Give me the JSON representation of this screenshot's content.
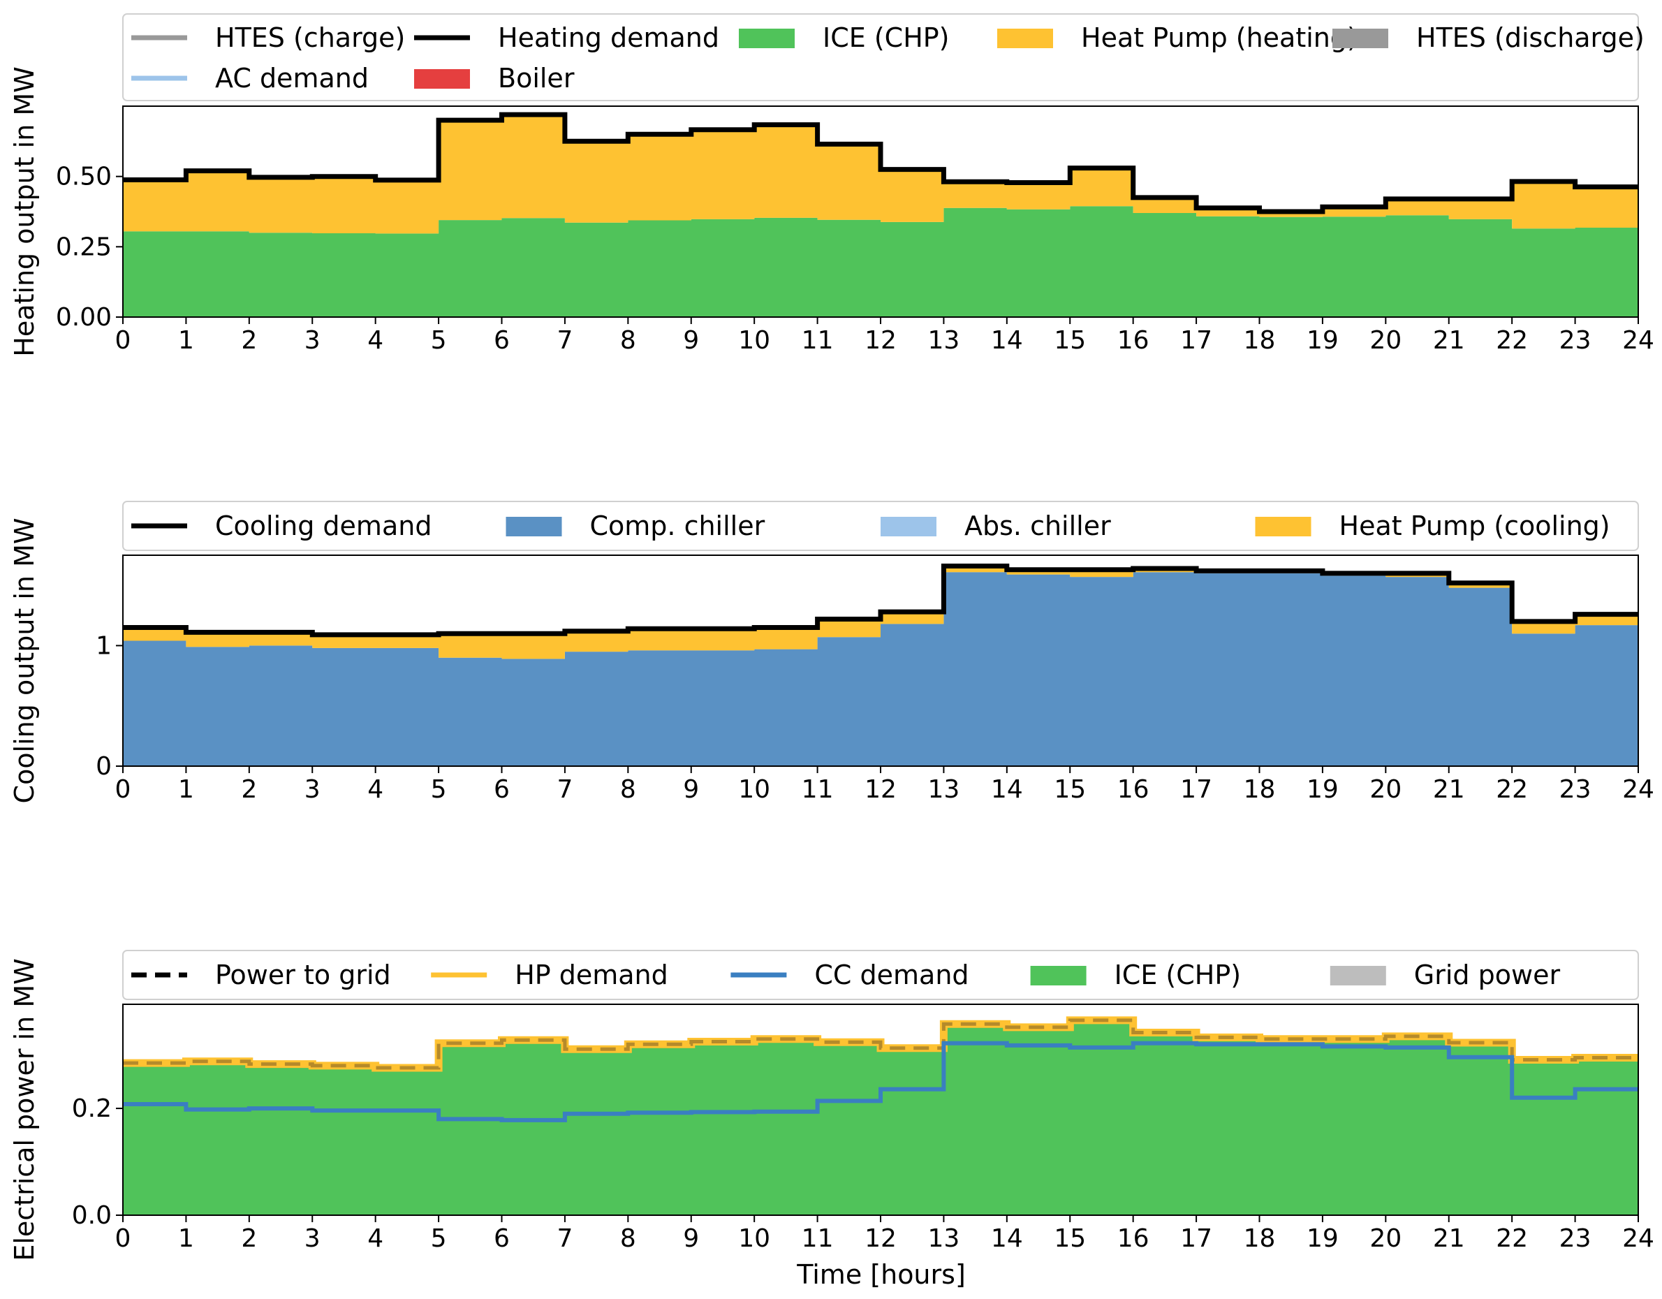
{
  "figure": {
    "xlabel": "Time [hours]"
  },
  "chart_data": [
    {
      "type": "area",
      "ylabel": "Heating output in MW",
      "xlim": [
        0,
        24
      ],
      "ylim": [
        0,
        0.75
      ],
      "x_ticks": [
        0,
        1,
        2,
        3,
        4,
        5,
        6,
        7,
        8,
        9,
        10,
        11,
        12,
        13,
        14,
        15,
        16,
        17,
        18,
        19,
        20,
        21,
        22,
        23,
        24
      ],
      "y_ticks": [
        0.0,
        0.25,
        0.5
      ],
      "y_tick_labels": [
        "0.00",
        "0.25",
        "0.50"
      ],
      "legend": [
        {
          "label": "HTES (charge)",
          "kind": "line",
          "color": "#999999"
        },
        {
          "label": "Heating demand",
          "kind": "line",
          "color": "#000000"
        },
        {
          "label": "ICE (CHP)",
          "kind": "patch",
          "color": "#50c35a"
        },
        {
          "label": "Heat Pump (heating)",
          "kind": "patch",
          "color": "#fec232"
        },
        {
          "label": "HTES (discharge)",
          "kind": "patch",
          "color": "#999999"
        },
        {
          "label": "AC demand",
          "kind": "line",
          "color": "#9dc4ea"
        },
        {
          "label": "Boiler",
          "kind": "patch",
          "color": "#e53f3f"
        }
      ],
      "stacks": [
        {
          "name": "ICE (CHP)",
          "color": "#50c35a",
          "values": [
            0.305,
            0.305,
            0.3,
            0.298,
            0.297,
            0.345,
            0.352,
            0.336,
            0.344,
            0.348,
            0.353,
            0.346,
            0.338,
            0.388,
            0.383,
            0.394,
            0.37,
            0.358,
            0.356,
            0.357,
            0.362,
            0.348,
            0.315,
            0.318
          ]
        },
        {
          "name": "Heat Pump (heating)",
          "color": "#fec232",
          "values": [
            0.183,
            0.215,
            0.197,
            0.202,
            0.19,
            0.355,
            0.368,
            0.289,
            0.306,
            0.318,
            0.331,
            0.269,
            0.187,
            0.093,
            0.095,
            0.136,
            0.055,
            0.03,
            0.019,
            0.035,
            0.058,
            0.072,
            0.167,
            0.145
          ]
        }
      ],
      "lines": [
        {
          "name": "Heating demand",
          "color": "#000000",
          "width": 7,
          "values": [
            0.488,
            0.52,
            0.497,
            0.5,
            0.487,
            0.7,
            0.72,
            0.625,
            0.65,
            0.666,
            0.684,
            0.615,
            0.525,
            0.481,
            0.478,
            0.53,
            0.425,
            0.388,
            0.375,
            0.392,
            0.42,
            0.42,
            0.482,
            0.463
          ]
        }
      ]
    },
    {
      "type": "area",
      "ylabel": "Cooling output in MW",
      "xlim": [
        0,
        24
      ],
      "ylim": [
        0,
        1.75
      ],
      "x_ticks": [
        0,
        1,
        2,
        3,
        4,
        5,
        6,
        7,
        8,
        9,
        10,
        11,
        12,
        13,
        14,
        15,
        16,
        17,
        18,
        19,
        20,
        21,
        22,
        23,
        24
      ],
      "y_ticks": [
        0,
        1
      ],
      "y_tick_labels": [
        "0",
        "1"
      ],
      "legend": [
        {
          "label": "Cooling demand",
          "kind": "line",
          "color": "#000000"
        },
        {
          "label": "Comp. chiller",
          "kind": "patch",
          "color": "#5a91c4"
        },
        {
          "label": "Abs. chiller",
          "kind": "patch",
          "color": "#9dc4ea"
        },
        {
          "label": "Heat Pump (cooling)",
          "kind": "patch",
          "color": "#fec232"
        }
      ],
      "stacks": [
        {
          "name": "Comp. chiller",
          "color": "#5a91c4",
          "values": [
            1.04,
            0.99,
            1.0,
            0.98,
            0.98,
            0.9,
            0.89,
            0.95,
            0.96,
            0.96,
            0.97,
            1.07,
            1.18,
            1.61,
            1.59,
            1.57,
            1.61,
            1.6,
            1.6,
            1.58,
            1.57,
            1.48,
            1.1,
            1.17
          ]
        },
        {
          "name": "Heat Pump (cooling)",
          "color": "#fec232",
          "values": [
            0.11,
            0.12,
            0.11,
            0.11,
            0.11,
            0.2,
            0.21,
            0.17,
            0.18,
            0.18,
            0.18,
            0.15,
            0.1,
            0.05,
            0.04,
            0.06,
            0.03,
            0.02,
            0.02,
            0.02,
            0.03,
            0.04,
            0.1,
            0.09
          ]
        }
      ],
      "lines": [
        {
          "name": "Cooling demand",
          "color": "#000000",
          "width": 7,
          "values": [
            1.15,
            1.11,
            1.11,
            1.09,
            1.09,
            1.1,
            1.1,
            1.12,
            1.14,
            1.14,
            1.15,
            1.22,
            1.28,
            1.66,
            1.63,
            1.63,
            1.64,
            1.62,
            1.62,
            1.6,
            1.6,
            1.52,
            1.2,
            1.26
          ]
        }
      ]
    },
    {
      "type": "area",
      "ylabel": "Electrical power in MW",
      "xlim": [
        0,
        24
      ],
      "ylim": [
        0,
        0.395
      ],
      "x_ticks": [
        0,
        1,
        2,
        3,
        4,
        5,
        6,
        7,
        8,
        9,
        10,
        11,
        12,
        13,
        14,
        15,
        16,
        17,
        18,
        19,
        20,
        21,
        22,
        23,
        24
      ],
      "y_ticks": [
        0.0,
        0.2
      ],
      "y_tick_labels": [
        "0.0",
        "0.2"
      ],
      "legend": [
        {
          "label": "Power to grid",
          "kind": "dashed",
          "color": "#000000"
        },
        {
          "label": "HP demand",
          "kind": "line",
          "color": "#fec232"
        },
        {
          "label": "CC demand",
          "kind": "line",
          "color": "#3a7fc1"
        },
        {
          "label": "ICE (CHP)",
          "kind": "patch",
          "color": "#50c35a"
        },
        {
          "label": "Grid power",
          "kind": "patch",
          "color": "#bdbdbd"
        }
      ],
      "stacks": [
        {
          "name": "ICE (CHP)",
          "color": "#50c35a",
          "values": [
            0.285,
            0.288,
            0.283,
            0.28,
            0.276,
            0.322,
            0.328,
            0.311,
            0.32,
            0.325,
            0.33,
            0.324,
            0.313,
            0.358,
            0.352,
            0.365,
            0.342,
            0.333,
            0.33,
            0.33,
            0.335,
            0.323,
            0.291,
            0.295
          ]
        }
      ],
      "lines": [
        {
          "name": "HP demand",
          "color": "#fec232",
          "width": 11,
          "values": [
            0.285,
            0.288,
            0.283,
            0.28,
            0.276,
            0.322,
            0.328,
            0.311,
            0.32,
            0.325,
            0.33,
            0.324,
            0.313,
            0.358,
            0.352,
            0.365,
            0.342,
            0.333,
            0.33,
            0.33,
            0.335,
            0.323,
            0.291,
            0.295
          ]
        },
        {
          "name": "Power to grid",
          "color": "#b58a2a",
          "width": 5,
          "dashed": true,
          "values": [
            0.285,
            0.288,
            0.283,
            0.28,
            0.276,
            0.322,
            0.328,
            0.311,
            0.32,
            0.325,
            0.33,
            0.324,
            0.313,
            0.358,
            0.352,
            0.365,
            0.342,
            0.333,
            0.33,
            0.33,
            0.335,
            0.323,
            0.291,
            0.295
          ]
        },
        {
          "name": "CC demand",
          "color": "#3a7fc1",
          "width": 6,
          "values": [
            0.208,
            0.198,
            0.2,
            0.196,
            0.196,
            0.18,
            0.178,
            0.19,
            0.192,
            0.193,
            0.194,
            0.214,
            0.236,
            0.322,
            0.318,
            0.314,
            0.322,
            0.32,
            0.32,
            0.316,
            0.314,
            0.296,
            0.22,
            0.236
          ]
        }
      ]
    }
  ]
}
